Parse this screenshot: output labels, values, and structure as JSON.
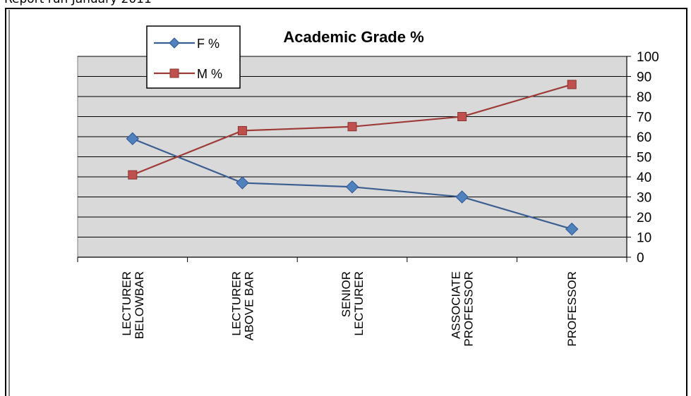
{
  "page": {
    "caption": "Report run January 2011"
  },
  "chart_data": {
    "type": "line",
    "title": "Academic Grade %",
    "categories": [
      [
        "LECTURER",
        "BELOWBAR"
      ],
      [
        "LECTURER",
        "ABOVE BAR"
      ],
      [
        "SENIOR",
        "LECTURER"
      ],
      [
        "ASSOCIATE",
        "PROFESSOR"
      ],
      [
        "PROFESSOR"
      ]
    ],
    "series": [
      {
        "name": "F %",
        "values": [
          59,
          37,
          35,
          30,
          14
        ],
        "color": "#4F81BD",
        "marker": "diamond",
        "line_color": "#3B5E91"
      },
      {
        "name": "M %",
        "values": [
          41,
          63,
          65,
          70,
          86
        ],
        "color": "#C0504D",
        "marker": "square",
        "line_color": "#9E3B37"
      }
    ],
    "ylim": [
      0,
      100
    ],
    "yticks": [
      0,
      10,
      20,
      30,
      40,
      50,
      60,
      70,
      80,
      90,
      100
    ],
    "y_axis_side": "right",
    "grid": true,
    "plot_background": "#D9D9D9",
    "legend_position": "top-left"
  }
}
